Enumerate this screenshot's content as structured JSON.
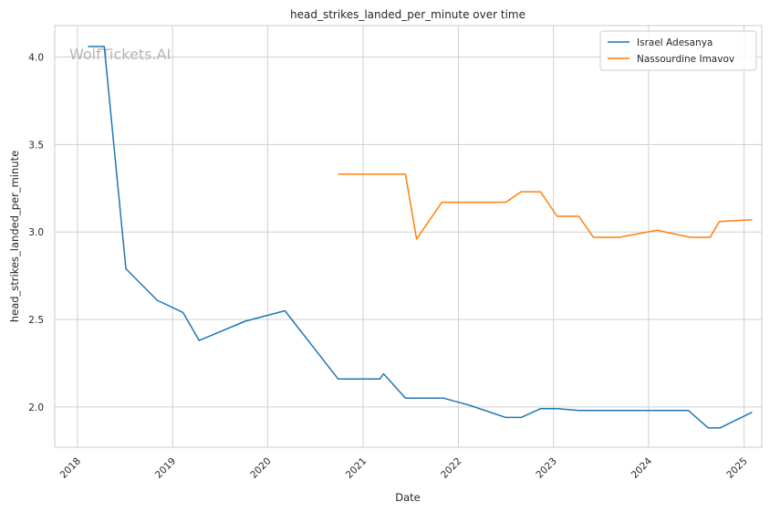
{
  "chart_data": {
    "type": "line",
    "title": "head_strikes_landed_per_minute over time",
    "xlabel": "Date",
    "ylabel": "head_strikes_landed_per_minute",
    "watermark": "WolfTickets.AI",
    "xlim": [
      "2017-10-06",
      "2025-03-10"
    ],
    "ylim": [
      1.77,
      4.18
    ],
    "x_ticks": [
      {
        "value": "2018-01-01",
        "label": "2018"
      },
      {
        "value": "2019-01-01",
        "label": "2019"
      },
      {
        "value": "2020-01-01",
        "label": "2020"
      },
      {
        "value": "2021-01-01",
        "label": "2021"
      },
      {
        "value": "2022-01-01",
        "label": "2022"
      },
      {
        "value": "2023-01-01",
        "label": "2023"
      },
      {
        "value": "2024-01-01",
        "label": "2024"
      },
      {
        "value": "2025-01-01",
        "label": "2025"
      }
    ],
    "y_ticks": [
      {
        "value": 2.0,
        "label": "2.0"
      },
      {
        "value": 2.5,
        "label": "2.5"
      },
      {
        "value": 3.0,
        "label": "3.0"
      },
      {
        "value": 3.5,
        "label": "3.5"
      },
      {
        "value": 4.0,
        "label": "4.0"
      }
    ],
    "grid": true,
    "legend_position": "top-right",
    "series": [
      {
        "name": "Israel Adesanya",
        "color": "#1f77b4",
        "points": [
          {
            "x": "2018-02-10",
            "y": 4.06
          },
          {
            "x": "2018-04-14",
            "y": 4.06
          },
          {
            "x": "2018-07-06",
            "y": 2.79
          },
          {
            "x": "2018-11-03",
            "y": 2.61
          },
          {
            "x": "2019-02-10",
            "y": 2.54
          },
          {
            "x": "2019-04-13",
            "y": 2.38
          },
          {
            "x": "2019-10-06",
            "y": 2.49
          },
          {
            "x": "2020-03-07",
            "y": 2.55
          },
          {
            "x": "2020-09-27",
            "y": 2.16
          },
          {
            "x": "2021-03-06",
            "y": 2.16
          },
          {
            "x": "2021-03-20",
            "y": 2.19
          },
          {
            "x": "2021-06-12",
            "y": 2.05
          },
          {
            "x": "2021-11-06",
            "y": 2.05
          },
          {
            "x": "2022-02-12",
            "y": 2.01
          },
          {
            "x": "2022-07-02",
            "y": 1.94
          },
          {
            "x": "2022-08-30",
            "y": 1.94
          },
          {
            "x": "2022-11-12",
            "y": 1.99
          },
          {
            "x": "2023-01-15",
            "y": 1.99
          },
          {
            "x": "2023-04-08",
            "y": 1.98
          },
          {
            "x": "2023-09-10",
            "y": 1.98
          },
          {
            "x": "2024-06-01",
            "y": 1.98
          },
          {
            "x": "2024-08-17",
            "y": 1.88
          },
          {
            "x": "2024-09-30",
            "y": 1.88
          },
          {
            "x": "2025-02-01",
            "y": 1.97
          }
        ]
      },
      {
        "name": "Nassourdine Imavov",
        "color": "#ff7f0e",
        "points": [
          {
            "x": "2020-09-27",
            "y": 3.33
          },
          {
            "x": "2021-06-12",
            "y": 3.33
          },
          {
            "x": "2021-07-25",
            "y": 2.96
          },
          {
            "x": "2021-10-30",
            "y": 3.17
          },
          {
            "x": "2022-07-02",
            "y": 3.17
          },
          {
            "x": "2022-08-30",
            "y": 3.23
          },
          {
            "x": "2022-11-12",
            "y": 3.23
          },
          {
            "x": "2023-01-15",
            "y": 3.09
          },
          {
            "x": "2023-04-08",
            "y": 3.09
          },
          {
            "x": "2023-06-03",
            "y": 2.97
          },
          {
            "x": "2023-09-10",
            "y": 2.97
          },
          {
            "x": "2024-02-03",
            "y": 3.01
          },
          {
            "x": "2024-06-08",
            "y": 2.97
          },
          {
            "x": "2024-08-24",
            "y": 2.97
          },
          {
            "x": "2024-09-28",
            "y": 3.06
          },
          {
            "x": "2025-02-01",
            "y": 3.07
          }
        ]
      }
    ]
  }
}
